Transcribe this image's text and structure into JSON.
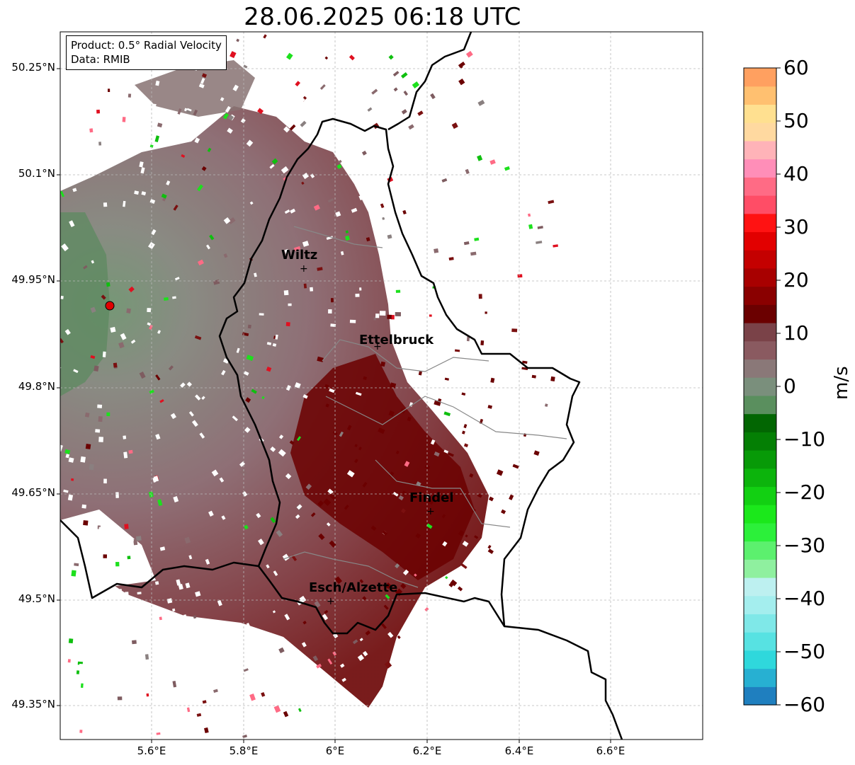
{
  "title": "28.06.2025 06:18 UTC",
  "info": {
    "product": "Product: 0.5° Radial Velocity",
    "data": "Data: RMIB"
  },
  "cities": [
    {
      "name": "Wiltz"
    },
    {
      "name": "Ettelbruck"
    },
    {
      "name": "Findel"
    },
    {
      "name": "Esch/Alzette"
    }
  ],
  "lat_labels": [
    "50.25°N",
    "50.1°N",
    "49.95°N",
    "49.8°N",
    "49.65°N",
    "49.5°N",
    "49.35°N"
  ],
  "lon_labels": [
    "5.6°E",
    "5.8°E",
    "6°E",
    "6.2°E",
    "6.4°E",
    "6.6°E"
  ],
  "colorbar": {
    "label": "m/s",
    "ticks": [
      "60",
      "50",
      "40",
      "30",
      "20",
      "10",
      "0",
      "−10",
      "−20",
      "−30",
      "−40",
      "−50",
      "−60"
    ],
    "range": [
      -60,
      60
    ],
    "colors": [
      "#1f7fbf",
      "#27b0d2",
      "#2fd8dc",
      "#57e2e2",
      "#7fe8e8",
      "#a4eeee",
      "#bdf0f0",
      "#8ff09f",
      "#5cf06e",
      "#2cf03a",
      "#1be81b",
      "#12d012",
      "#0cb40c",
      "#079a07",
      "#047f04",
      "#026602",
      "#5a8f5e",
      "#7a8f7c",
      "#8a7878",
      "#8a5a60",
      "#7a4248",
      "#6b0000",
      "#8a0000",
      "#a80000",
      "#c40000",
      "#e20000",
      "#ff1212",
      "#ff4d66",
      "#ff6b85",
      "#ff8eb8",
      "#ffb3b8",
      "#ffd9a0",
      "#ffe090",
      "#ffc070",
      "#ffa060"
    ]
  },
  "colors": {
    "background": "#ffffff",
    "grid": "#b8b8b8",
    "border": "#000000",
    "radar_site": "#e00000"
  }
}
